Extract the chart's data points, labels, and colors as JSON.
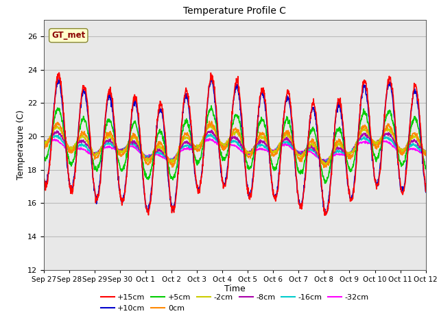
{
  "title": "Temperature Profile C",
  "xlabel": "Time",
  "ylabel": "Temperature (C)",
  "ylim": [
    12,
    27
  ],
  "yticks": [
    12,
    14,
    16,
    18,
    20,
    22,
    24,
    26
  ],
  "annotation": "GT_met",
  "series": {
    "+15cm": {
      "color": "#ff0000",
      "lw": 1.2
    },
    "+10cm": {
      "color": "#0000cc",
      "lw": 1.2
    },
    "+5cm": {
      "color": "#00cc00",
      "lw": 1.2
    },
    "0cm": {
      "color": "#ff8800",
      "lw": 1.2
    },
    "-2cm": {
      "color": "#cccc00",
      "lw": 1.2
    },
    "-8cm": {
      "color": "#aa00aa",
      "lw": 1.2
    },
    "-16cm": {
      "color": "#00cccc",
      "lw": 1.2
    },
    "-32cm": {
      "color": "#ff00ff",
      "lw": 1.2
    }
  },
  "n_points": 1440,
  "date_labels": [
    "Sep 27",
    "Sep 28",
    "Sep 29",
    "Sep 30",
    "Oct 1",
    "Oct 2",
    "Oct 3",
    "Oct 4",
    "Oct 5",
    "Oct 6",
    "Oct 7",
    "Oct 8",
    "Oct 9",
    "Oct 10",
    "Oct 11",
    "Oct 12"
  ],
  "background_color": "#ffffff",
  "grid_color": "#bbbbbb",
  "ax_facecolor": "#e8e8e8",
  "legend_ncol": 6,
  "legend_rows": [
    [
      "+15cm",
      "+10cm",
      "+5cm",
      "0cm",
      "-2cm",
      "-8cm"
    ],
    [
      "-16cm",
      "-32cm"
    ]
  ]
}
